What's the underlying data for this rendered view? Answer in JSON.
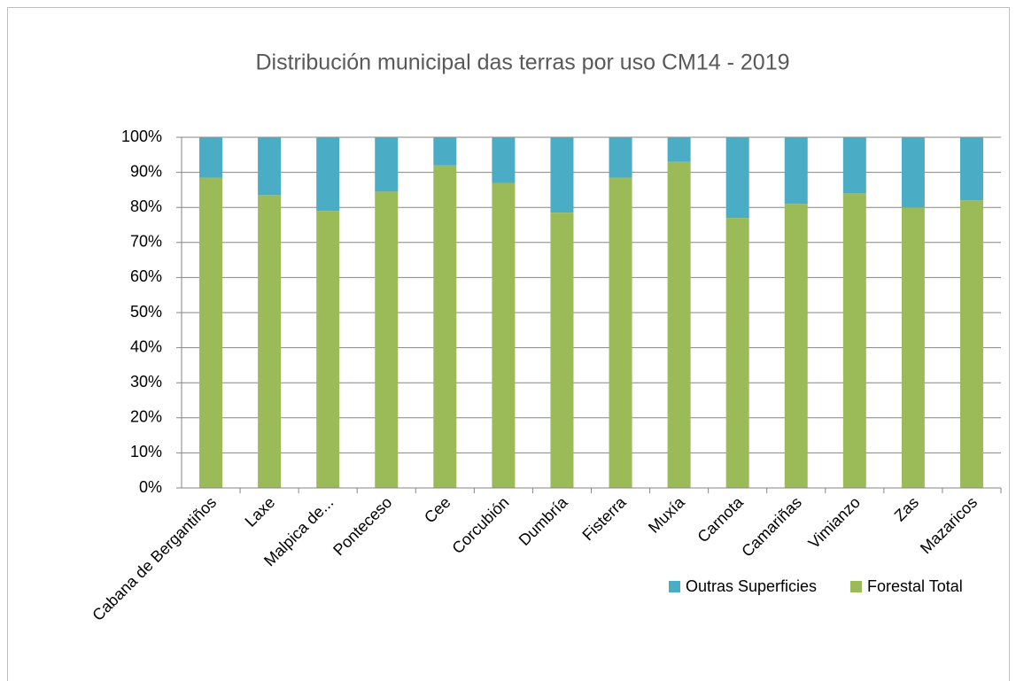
{
  "chart_data": {
    "type": "stacked_bar",
    "title": "Distribución  municipal das terras por uso CM14 - 2019",
    "categories": [
      "Cabana de Bergantiños",
      "Laxe",
      "Malpica de...",
      "Ponteceso",
      "Cee",
      "Corcubión",
      "Dumbría",
      "Fisterra",
      "Muxía",
      "Carnota",
      "Camariñas",
      "Vimianzo",
      "Zas",
      "Mazaricos"
    ],
    "series": [
      {
        "name": "Forestal Total",
        "color": "#9bbb59",
        "values": [
          88.5,
          83.5,
          79,
          84.5,
          92,
          87,
          78.5,
          88.5,
          93,
          77,
          81,
          84,
          80,
          82
        ]
      },
      {
        "name": "Outras Superficies",
        "color": "#4bacc6",
        "values": [
          11.5,
          16.5,
          21,
          15.5,
          8,
          13,
          21.5,
          11.5,
          7,
          23,
          19,
          16,
          20,
          18
        ]
      }
    ],
    "ylim": [
      0,
      100
    ],
    "yticks": [
      {
        "value": 0,
        "label": "0%"
      },
      {
        "value": 10,
        "label": "10%"
      },
      {
        "value": 20,
        "label": "20%"
      },
      {
        "value": 30,
        "label": "30%"
      },
      {
        "value": 40,
        "label": "40%"
      },
      {
        "value": 50,
        "label": "50%"
      },
      {
        "value": 60,
        "label": "60%"
      },
      {
        "value": 70,
        "label": "70%"
      },
      {
        "value": 80,
        "label": "80%"
      },
      {
        "value": 90,
        "label": "90%"
      },
      {
        "value": 100,
        "label": "100%"
      }
    ],
    "grid": true,
    "legend": "bottom-right"
  }
}
